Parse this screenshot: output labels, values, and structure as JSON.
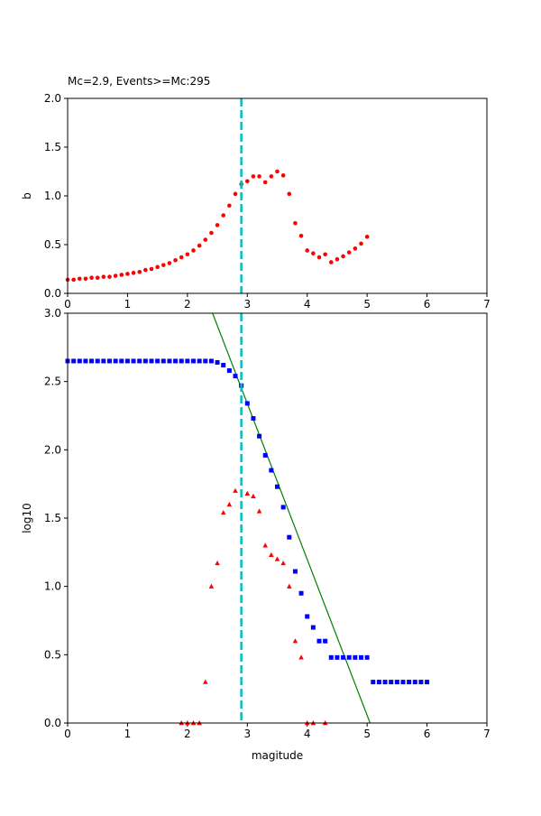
{
  "chart_data": [
    {
      "type": "scatter",
      "title": "Mc=2.9, Events>=Mc:295",
      "xlabel": "",
      "ylabel": "b",
      "xlim": [
        0,
        7
      ],
      "ylim": [
        0,
        2
      ],
      "xticks": [
        "0",
        "1",
        "2",
        "3",
        "4",
        "5",
        "6",
        "7"
      ],
      "yticks": [
        "0.0",
        "0.5",
        "1.0",
        "1.5",
        "2.0"
      ],
      "mc_line_x": 2.9,
      "colors": {
        "b_points": "#ff0000",
        "mc_line": "#00bfbf"
      },
      "series": [
        {
          "marker": "circle",
          "x": [
            0,
            0.1,
            0.2,
            0.3,
            0.4,
            0.5,
            0.6,
            0.7,
            0.8,
            0.9,
            1.0,
            1.1,
            1.2,
            1.3,
            1.4,
            1.5,
            1.6,
            1.7,
            1.8,
            1.9,
            2.0,
            2.1,
            2.2,
            2.3,
            2.4,
            2.5,
            2.6,
            2.7,
            2.8,
            2.9,
            3.0,
            3.1,
            3.2,
            3.3,
            3.4,
            3.5,
            3.6,
            3.7,
            3.8,
            3.9,
            4.0,
            4.1,
            4.2,
            4.3,
            4.4,
            4.5,
            4.6,
            4.7,
            4.8,
            4.9,
            5.0
          ],
          "y": [
            0.14,
            0.14,
            0.15,
            0.15,
            0.16,
            0.16,
            0.17,
            0.17,
            0.18,
            0.19,
            0.2,
            0.21,
            0.22,
            0.24,
            0.25,
            0.27,
            0.29,
            0.31,
            0.34,
            0.37,
            0.4,
            0.44,
            0.49,
            0.55,
            0.62,
            0.7,
            0.8,
            0.9,
            1.02,
            1.12,
            1.15,
            1.2,
            1.2,
            1.14,
            1.2,
            1.25,
            1.21,
            1.02,
            0.72,
            0.59,
            0.44,
            0.41,
            0.37,
            0.4,
            0.32,
            0.35,
            0.38,
            0.42,
            0.46,
            0.51,
            0.58
          ]
        }
      ]
    },
    {
      "type": "scatter",
      "title": "",
      "xlabel": "magitude",
      "ylabel": "log10",
      "xlim": [
        0,
        7
      ],
      "ylim": [
        0,
        3
      ],
      "xticks": [
        "0",
        "1",
        "2",
        "3",
        "4",
        "5",
        "6",
        "7"
      ],
      "yticks": [
        "0.0",
        "0.5",
        "1.0",
        "1.5",
        "2.0",
        "2.5",
        "3.0"
      ],
      "mc_line_x": 2.9,
      "fit_line": {
        "x": [
          2.42,
          5.05
        ],
        "y": [
          3.0,
          0.0
        ],
        "color": "#008000"
      },
      "colors": {
        "cumulative": "#0000ff",
        "noncumulative": "#ff0000",
        "mc_line": "#00bfbf"
      },
      "series": [
        {
          "marker": "square",
          "x": [
            0,
            0.1,
            0.2,
            0.3,
            0.4,
            0.5,
            0.6,
            0.7,
            0.8,
            0.9,
            1.0,
            1.1,
            1.2,
            1.3,
            1.4,
            1.5,
            1.6,
            1.7,
            1.8,
            1.9,
            2.0,
            2.1,
            2.2,
            2.3,
            2.4,
            2.5,
            2.6,
            2.7,
            2.8,
            2.9,
            3.0,
            3.1,
            3.2,
            3.3,
            3.4,
            3.5,
            3.6,
            3.7,
            3.8,
            3.9,
            4.0,
            4.1,
            4.2,
            4.3,
            4.4,
            4.5,
            4.6,
            4.7,
            4.8,
            4.9,
            5.0,
            5.1,
            5.2,
            5.3,
            5.4,
            5.5,
            5.6,
            5.7,
            5.8,
            5.9,
            6.0
          ],
          "y": [
            2.65,
            2.65,
            2.65,
            2.65,
            2.65,
            2.65,
            2.65,
            2.65,
            2.65,
            2.65,
            2.65,
            2.65,
            2.65,
            2.65,
            2.65,
            2.65,
            2.65,
            2.65,
            2.65,
            2.65,
            2.65,
            2.65,
            2.65,
            2.65,
            2.65,
            2.64,
            2.62,
            2.58,
            2.54,
            2.47,
            2.34,
            2.23,
            2.1,
            1.96,
            1.85,
            1.73,
            1.58,
            1.36,
            1.11,
            0.95,
            0.78,
            0.7,
            0.6,
            0.6,
            0.48,
            0.48,
            0.48,
            0.48,
            0.48,
            0.48,
            0.48,
            0.3,
            0.3,
            0.3,
            0.3,
            0.3,
            0.3,
            0.3,
            0.3,
            0.3,
            0.3
          ]
        },
        {
          "marker": "triangle",
          "x": [
            1.9,
            2.0,
            2.1,
            2.2,
            2.3,
            2.4,
            2.5,
            2.6,
            2.7,
            2.8,
            3.0,
            3.1,
            3.2,
            3.3,
            3.4,
            3.5,
            3.6,
            3.7,
            3.8,
            3.9,
            4.0,
            4.1,
            4.3
          ],
          "y": [
            0.0,
            0.0,
            0.0,
            0.0,
            0.3,
            1.0,
            1.17,
            1.54,
            1.6,
            1.7,
            1.68,
            1.66,
            1.55,
            1.3,
            1.23,
            1.2,
            1.17,
            1.0,
            0.6,
            0.48,
            0.0,
            0.0,
            0.0
          ]
        }
      ]
    }
  ]
}
